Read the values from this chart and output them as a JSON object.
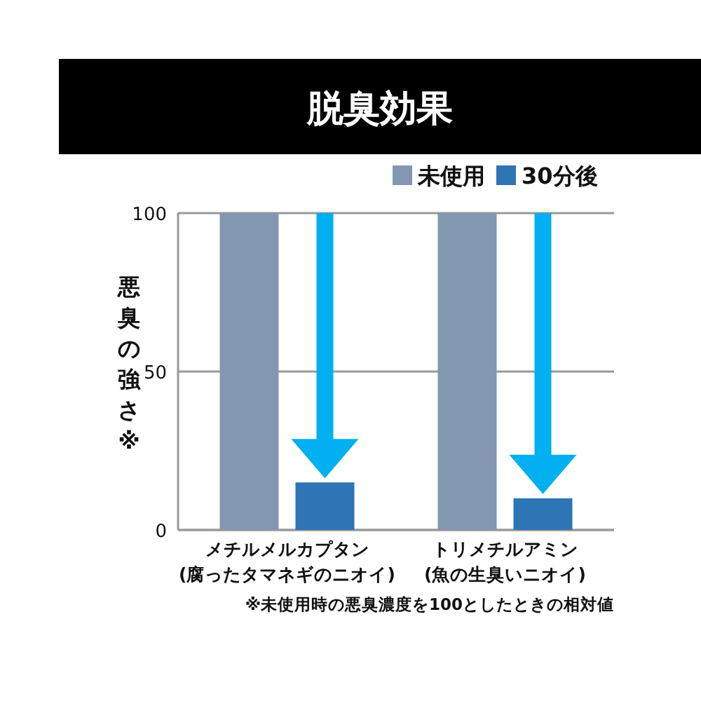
{
  "chart_data": {
    "type": "bar",
    "title": "脱臭効果",
    "categories": [
      "メチルメルカプタン\n(腐ったタマネギのニオイ)",
      "トリメチルアミン\n(魚の生臭いニオイ)"
    ],
    "series": [
      {
        "name": "未使用",
        "color": "#8497b0",
        "values": [
          100,
          100
        ]
      },
      {
        "name": "30分後",
        "color": "#2e75b6",
        "values": [
          15,
          10
        ]
      }
    ],
    "ylabel": "悪臭の強さ※",
    "ylim": [
      0,
      100
    ],
    "yticks": [
      0,
      50,
      100
    ],
    "grid": "y",
    "legend": "top right",
    "annotations": [
      "※未使用時の悪臭濃度を100としたときの相対値"
    ]
  }
}
